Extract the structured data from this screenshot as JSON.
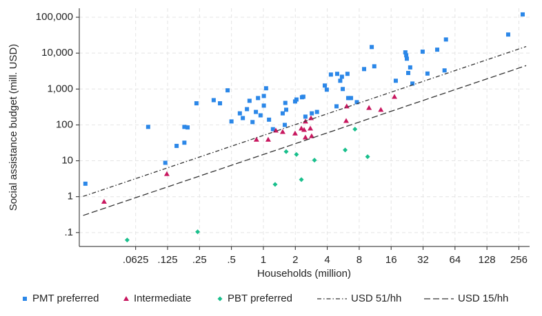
{
  "chart_data": {
    "type": "scatter",
    "xlabel": "Households (million)",
    "ylabel": "Social assistance budget (mill. USD)",
    "xscale": "log",
    "yscale": "log",
    "grid": true,
    "legend": "bottom",
    "xlim": [
      0.0184,
      323
    ],
    "ylim": [
      0.041,
      178000
    ],
    "xticks": [
      {
        "value": 0.0625,
        "label": ".0625"
      },
      {
        "value": 0.125,
        "label": ".125"
      },
      {
        "value": 0.25,
        "label": ".25"
      },
      {
        "value": 0.5,
        "label": ".5"
      },
      1,
      2,
      4,
      8,
      16,
      32,
      64,
      128,
      256
    ],
    "yticks": [
      {
        "value": 0.1,
        "label": ".1"
      },
      1,
      10,
      100,
      {
        "value": 1000,
        "label": "1,000"
      },
      {
        "value": 10000,
        "label": "10,000"
      },
      {
        "value": 100000,
        "label": "100,000"
      }
    ],
    "series": [
      {
        "name": "PMT preferred",
        "color": "#2b87e8",
        "marker": "square",
        "x": [
          0.021,
          0.082,
          0.119,
          0.152,
          0.18,
          0.18,
          0.193,
          0.234,
          0.34,
          0.39,
          0.46,
          0.5,
          0.6,
          0.64,
          0.7,
          0.74,
          0.79,
          0.85,
          0.89,
          0.94,
          1.01,
          1.01,
          1.06,
          1.13,
          1.23,
          1.52,
          1.59,
          1.61,
          1.64,
          1.99,
          2.05,
          2.31,
          2.38,
          2.49,
          2.86,
          3.2,
          3.79,
          3.96,
          4.33,
          4.89,
          4.96,
          5.3,
          5.5,
          5.6,
          6.2,
          6.3,
          6.5,
          6.7,
          7.6,
          8.9,
          10.5,
          11.1,
          17.7,
          21.8,
          22.2,
          22.5,
          23.2,
          24.2,
          25.4,
          31.7,
          35.2,
          43.5,
          51,
          52.6,
          203,
          278
        ],
        "values": [
          2.3,
          88,
          8.8,
          26,
          32,
          88,
          85,
          400,
          490,
          400,
          920,
          125,
          210,
          155,
          275,
          470,
          120,
          230,
          560,
          185,
          345,
          640,
          1050,
          140,
          76,
          210,
          100,
          410,
          265,
          450,
          510,
          590,
          610,
          170,
          210,
          230,
          1250,
          960,
          2530,
          330,
          2650,
          1700,
          2200,
          1000,
          2650,
          560,
          560,
          560,
          430,
          3600,
          14800,
          4300,
          1700,
          10500,
          8700,
          7000,
          2800,
          4000,
          1420,
          11000,
          2700,
          12500,
          3300,
          24000,
          33000,
          120000
        ]
      },
      {
        "name": "Intermediate",
        "color": "#c8175f",
        "marker": "triangle",
        "x": [
          0.0315,
          0.123,
          0.86,
          1.11,
          1.31,
          1.52,
          1.99,
          2.28,
          2.42,
          2.49,
          2.49,
          2.77,
          2.81,
          2.85,
          6.03,
          6.1,
          9.9,
          12.8,
          17.2
        ],
        "values": [
          0.73,
          4.3,
          39,
          39,
          70,
          64,
          58,
          80,
          73,
          45,
          125,
          80,
          155,
          49,
          130,
          330,
          300,
          265,
          610
        ]
      },
      {
        "name": "PBT preferred",
        "color": "#19bf8c",
        "marker": "diamond",
        "x": [
          0.052,
          0.24,
          1.29,
          1.64,
          2.05,
          2.28,
          3.03,
          5.9,
          7.3,
          9.6
        ],
        "values": [
          0.062,
          0.105,
          2.2,
          18,
          15,
          3,
          10.4,
          20,
          76,
          13
        ]
      },
      {
        "name": "USD 51/hh",
        "color": "#333333",
        "marker": "line",
        "dash": "6 3 1.5 3",
        "x": [
          0.02,
          300
        ],
        "values": [
          1.02,
          15300
        ]
      },
      {
        "name": "USD 15/hh",
        "color": "#333333",
        "marker": "line",
        "dash": "9 4",
        "x": [
          0.02,
          300
        ],
        "values": [
          0.3,
          4500
        ]
      }
    ]
  }
}
